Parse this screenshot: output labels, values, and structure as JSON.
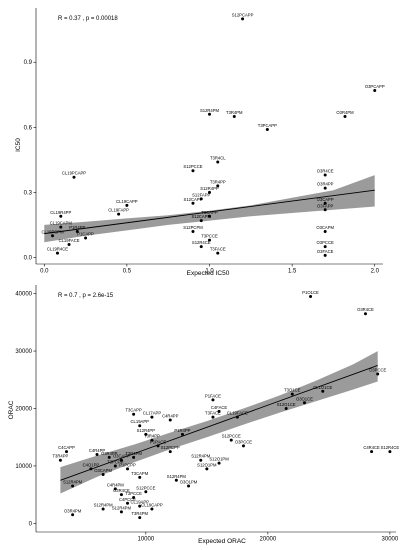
{
  "chart_data": [
    {
      "type": "scatter",
      "title": "",
      "xlabel": "Expected IC50",
      "ylabel": "IC50",
      "stat_text": "R = 0.37 , p = 0.00018",
      "xlim": [
        -0.05,
        2.05
      ],
      "ylim": [
        -0.03,
        1.15
      ],
      "xticks": [
        0.0,
        0.5,
        1.0,
        1.5,
        2.0
      ],
      "xtick_labels": [
        "0.0",
        "0.5",
        "1.0",
        "1.5",
        "2.0"
      ],
      "yticks": [
        0.0,
        0.3,
        0.6,
        0.9
      ],
      "ytick_labels": [
        "0.0",
        "0.3",
        "0.6",
        "0.9"
      ],
      "fit": {
        "x": [
          0.0,
          2.0
        ],
        "y": [
          0.11,
          0.31
        ]
      },
      "band": {
        "x": [
          0.0,
          0.25,
          0.5,
          0.75,
          1.0,
          1.25,
          1.5,
          1.75,
          2.0
        ],
        "lower": [
          0.07,
          0.1,
          0.125,
          0.15,
          0.17,
          0.19,
          0.205,
          0.22,
          0.235
        ],
        "upper": [
          0.15,
          0.165,
          0.18,
          0.195,
          0.215,
          0.24,
          0.275,
          0.31,
          0.38
        ]
      },
      "points": [
        {
          "x": 1.2,
          "y": 1.1,
          "label": "S12PCAPP"
        },
        {
          "x": 2.0,
          "y": 0.77,
          "label": "O3PCAPP"
        },
        {
          "x": 1.82,
          "y": 0.65,
          "label": "O3R4PM"
        },
        {
          "x": 1.0,
          "y": 0.66,
          "label": "S12R4PM"
        },
        {
          "x": 1.15,
          "y": 0.65,
          "label": "T3R4PM"
        },
        {
          "x": 1.35,
          "y": 0.59,
          "label": "T3PCAPP"
        },
        {
          "x": 1.05,
          "y": 0.44,
          "label": "T3R4CL"
        },
        {
          "x": 0.9,
          "y": 0.4,
          "label": "S12PCCE"
        },
        {
          "x": 0.18,
          "y": 0.37,
          "label": "CL19PCAPP"
        },
        {
          "x": 1.7,
          "y": 0.38,
          "label": "O3R4CE"
        },
        {
          "x": 1.7,
          "y": 0.32,
          "label": "O3R4PP"
        },
        {
          "x": 1.05,
          "y": 0.33,
          "label": "T3R4PP"
        },
        {
          "x": 1.0,
          "y": 0.3,
          "label": "S12R4PP"
        },
        {
          "x": 0.95,
          "y": 0.27,
          "label": "S12FAPP"
        },
        {
          "x": 0.9,
          "y": 0.25,
          "label": "S12CAPP"
        },
        {
          "x": 1.7,
          "y": 0.25,
          "label": "O3CAPP"
        },
        {
          "x": 1.7,
          "y": 0.22,
          "label": "O3FAPP"
        },
        {
          "x": 0.5,
          "y": 0.24,
          "label": "CL19CAPP"
        },
        {
          "x": 0.45,
          "y": 0.2,
          "label": "CL19FAPP"
        },
        {
          "x": 0.1,
          "y": 0.19,
          "label": "CL19R4PP"
        },
        {
          "x": 1.0,
          "y": 0.19,
          "label": "T3CAPP"
        },
        {
          "x": 0.95,
          "y": 0.17,
          "label": "S12CAPM"
        },
        {
          "x": 0.9,
          "y": 0.12,
          "label": "S12PCPM"
        },
        {
          "x": 1.0,
          "y": 0.08,
          "label": "T3PCCE"
        },
        {
          "x": 0.95,
          "y": 0.05,
          "label": "S12R4CE"
        },
        {
          "x": 1.05,
          "y": 0.02,
          "label": "T3FACE"
        },
        {
          "x": 1.7,
          "y": 0.12,
          "label": "O3CAPM"
        },
        {
          "x": 1.7,
          "y": 0.05,
          "label": "O3PCCE"
        },
        {
          "x": 1.7,
          "y": 0.01,
          "label": "O3FACE"
        },
        {
          "x": 0.1,
          "y": 0.14,
          "label": "CL19CAPM"
        },
        {
          "x": 0.05,
          "y": 0.1,
          "label": "CL19PCPM"
        },
        {
          "x": 0.15,
          "y": 0.06,
          "label": "CL19FACE"
        },
        {
          "x": 0.08,
          "y": 0.02,
          "label": "CL19R4CE"
        },
        {
          "x": 0.2,
          "y": 0.12,
          "label": "P1R4PP"
        },
        {
          "x": 0.25,
          "y": 0.09,
          "label": "P1CAPP"
        }
      ]
    },
    {
      "type": "scatter",
      "title": "",
      "xlabel": "Expected ORAC",
      "ylabel": "ORAC",
      "stat_text": "R = 0.7 , p = 2.6e-15",
      "xlim": [
        1000,
        30500
      ],
      "ylim": [
        -1500,
        41500
      ],
      "xticks": [
        10000,
        20000,
        30000
      ],
      "xtick_labels": [
        "10000",
        "20000",
        "30000"
      ],
      "yticks": [
        0,
        10000,
        20000,
        30000,
        40000
      ],
      "ytick_labels": [
        "0",
        "10000",
        "20000",
        "30000",
        "40000"
      ],
      "fit": {
        "x": [
          3000,
          29000
        ],
        "y": [
          7500,
          27500
        ]
      },
      "band": {
        "x": [
          3000,
          6000,
          9000,
          12000,
          15000,
          18000,
          21000,
          24000,
          27000,
          29000
        ],
        "lower": [
          5200,
          8100,
          10600,
          12900,
          15000,
          17200,
          19300,
          21300,
          23300,
          24700
        ],
        "upper": [
          9800,
          11800,
          13700,
          15800,
          17800,
          20000,
          22300,
          24900,
          27700,
          30000
        ]
      },
      "points": [
        {
          "x": 23500,
          "y": 39500,
          "label": "P1O1CE"
        },
        {
          "x": 28000,
          "y": 36500,
          "label": "O3R4CE"
        },
        {
          "x": 29000,
          "y": 26000,
          "label": "O3PCCE"
        },
        {
          "x": 24500,
          "y": 23000,
          "label": "CL1O1CE"
        },
        {
          "x": 22000,
          "y": 22500,
          "label": "T3O1CE"
        },
        {
          "x": 23000,
          "y": 21000,
          "label": "O3O1CE"
        },
        {
          "x": 21500,
          "y": 20000,
          "label": "S12O1CE"
        },
        {
          "x": 15500,
          "y": 21500,
          "label": "P1FACE"
        },
        {
          "x": 16000,
          "y": 19500,
          "label": "C4FACE"
        },
        {
          "x": 15500,
          "y": 18500,
          "label": "T3FACE"
        },
        {
          "x": 17500,
          "y": 18500,
          "label": "CL19FACE"
        },
        {
          "x": 9000,
          "y": 19000,
          "label": "T3CAPP"
        },
        {
          "x": 10500,
          "y": 18500,
          "label": "CL17APP"
        },
        {
          "x": 12000,
          "y": 18000,
          "label": "C4R4PP"
        },
        {
          "x": 9500,
          "y": 17000,
          "label": "CL19APP"
        },
        {
          "x": 10000,
          "y": 15500,
          "label": "S12R4PP"
        },
        {
          "x": 10500,
          "y": 14500,
          "label": "T3R4PP"
        },
        {
          "x": 13000,
          "y": 15500,
          "label": "P1R4PP"
        },
        {
          "x": 17000,
          "y": 14500,
          "label": "S12PCCE"
        },
        {
          "x": 18000,
          "y": 13500,
          "label": "O3PCCE"
        },
        {
          "x": 28500,
          "y": 12500,
          "label": "C4R4CE"
        },
        {
          "x": 30000,
          "y": 12500,
          "label": "S12R4CE"
        },
        {
          "x": 11000,
          "y": 13500,
          "label": "P1PACE"
        },
        {
          "x": 12000,
          "y": 12500,
          "label": "S12PCPP"
        },
        {
          "x": 9000,
          "y": 11500,
          "label": "T3R4PM"
        },
        {
          "x": 14500,
          "y": 11000,
          "label": "S12R4PM"
        },
        {
          "x": 16000,
          "y": 10500,
          "label": "S12O1PM"
        },
        {
          "x": 15000,
          "y": 9500,
          "label": "S12O1PM"
        },
        {
          "x": 3500,
          "y": 12500,
          "label": "C4CAPP"
        },
        {
          "x": 3000,
          "y": 11000,
          "label": "T3R4PP"
        },
        {
          "x": 6000,
          "y": 12000,
          "label": "C4R4PP"
        },
        {
          "x": 7000,
          "y": 11500,
          "label": "O3R4PP"
        },
        {
          "x": 8000,
          "y": 11000,
          "label": "O3CAPP"
        },
        {
          "x": 7500,
          "y": 10000,
          "label": "T3PCPP"
        },
        {
          "x": 8500,
          "y": 9500,
          "label": "P1PCPP"
        },
        {
          "x": 5500,
          "y": 9500,
          "label": "C4O1PP"
        },
        {
          "x": 4000,
          "y": 6500,
          "label": "S12R4PM"
        },
        {
          "x": 6500,
          "y": 8500,
          "label": "O3CAPM"
        },
        {
          "x": 9500,
          "y": 8000,
          "label": "T3CAPM"
        },
        {
          "x": 12500,
          "y": 7500,
          "label": "S12R4PM"
        },
        {
          "x": 13500,
          "y": 6500,
          "label": "O3O1PM"
        },
        {
          "x": 7500,
          "y": 6000,
          "label": "C4R4PM"
        },
        {
          "x": 8000,
          "y": 5000,
          "label": "O3R4CE"
        },
        {
          "x": 10000,
          "y": 5500,
          "label": "S12PCCE"
        },
        {
          "x": 9000,
          "y": 4500,
          "label": "T3PCCE"
        },
        {
          "x": 8500,
          "y": 3500,
          "label": "C4PCCE"
        },
        {
          "x": 9500,
          "y": 3000,
          "label": "CL19APP"
        },
        {
          "x": 10500,
          "y": 2500,
          "label": "CL19CAPP"
        },
        {
          "x": 6500,
          "y": 2500,
          "label": "S12R4PM"
        },
        {
          "x": 8000,
          "y": 2000,
          "label": "S12R4PM"
        },
        {
          "x": 9500,
          "y": 1000,
          "label": "T3R4PM"
        },
        {
          "x": 4000,
          "y": 1500,
          "label": "O3R4PM"
        }
      ]
    }
  ]
}
